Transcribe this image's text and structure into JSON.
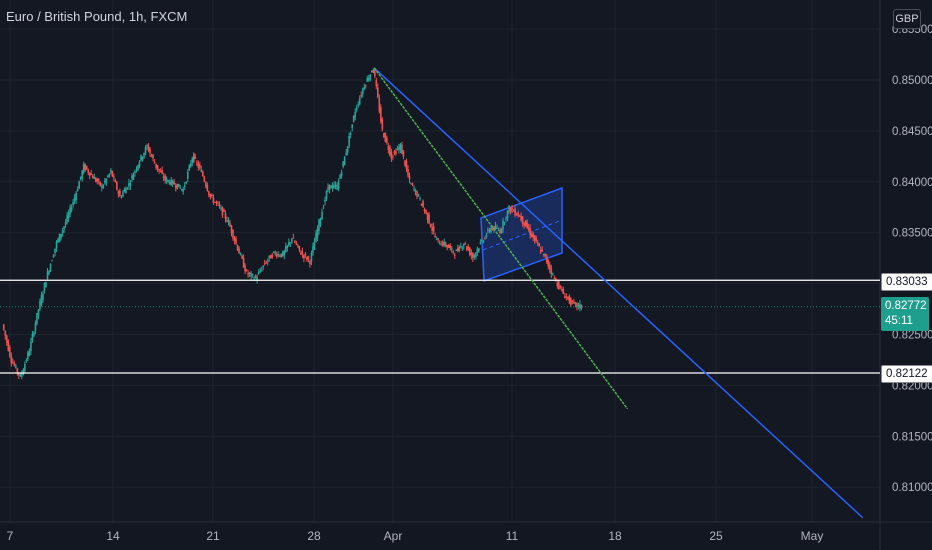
{
  "header": {
    "title": "Euro / British Pound, 1h, FXCM",
    "currency": "GBP"
  },
  "price_tags": {
    "level1": "0.83033",
    "level2": "0.82122",
    "current": "0.82772",
    "countdown": "45:11"
  },
  "colors": {
    "background": "#131722",
    "up": "#26a69a",
    "down": "#ef5350",
    "trend_blue": "#2962ff",
    "trend_green": "#4caf50",
    "level": "#ffffff"
  },
  "chart_data": {
    "type": "candlestick",
    "y_axis": {
      "ticks": [
        "0.85500",
        "0.85000",
        "0.84500",
        "0.84000",
        "0.83500",
        "0.83000",
        "0.82500",
        "0.82000",
        "0.81500",
        "0.81000"
      ],
      "ylim": [
        0.8067,
        0.856
      ]
    },
    "x_axis": {
      "ticks": [
        "7",
        "14",
        "21",
        "28",
        "Apr",
        "11",
        "18",
        "25",
        "May"
      ]
    },
    "approx_price_path": [
      [
        0,
        0.826
      ],
      [
        1,
        0.8225
      ],
      [
        2,
        0.8208
      ],
      [
        3,
        0.8235
      ],
      [
        4,
        0.8275
      ],
      [
        5,
        0.831
      ],
      [
        6,
        0.834
      ],
      [
        7,
        0.836
      ],
      [
        8,
        0.8385
      ],
      [
        9,
        0.8415
      ],
      [
        10,
        0.8405
      ],
      [
        11,
        0.8395
      ],
      [
        12,
        0.841
      ],
      [
        13,
        0.8385
      ],
      [
        14,
        0.8398
      ],
      [
        15,
        0.8418
      ],
      [
        16,
        0.8435
      ],
      [
        17,
        0.8415
      ],
      [
        18,
        0.8402
      ],
      [
        19,
        0.8398
      ],
      [
        20,
        0.8392
      ],
      [
        21,
        0.8425
      ],
      [
        22,
        0.841
      ],
      [
        23,
        0.8385
      ],
      [
        24,
        0.8375
      ],
      [
        25,
        0.836
      ],
      [
        26,
        0.8335
      ],
      [
        27,
        0.831
      ],
      [
        28,
        0.8305
      ],
      [
        29,
        0.832
      ],
      [
        30,
        0.833
      ],
      [
        31,
        0.8328
      ],
      [
        32,
        0.8345
      ],
      [
        33,
        0.833
      ],
      [
        34,
        0.8322
      ],
      [
        35,
        0.836
      ],
      [
        36,
        0.8395
      ],
      [
        37,
        0.8395
      ],
      [
        38,
        0.843
      ],
      [
        39,
        0.847
      ],
      [
        40,
        0.8495
      ],
      [
        41,
        0.8512
      ],
      [
        42,
        0.845
      ],
      [
        43,
        0.8425
      ],
      [
        44,
        0.8435
      ],
      [
        45,
        0.84
      ],
      [
        46,
        0.8385
      ],
      [
        47,
        0.8365
      ],
      [
        48,
        0.8342
      ],
      [
        49,
        0.8338
      ],
      [
        50,
        0.833
      ],
      [
        51,
        0.834
      ],
      [
        52,
        0.8326
      ],
      [
        53,
        0.8342
      ],
      [
        54,
        0.8355
      ],
      [
        55,
        0.8352
      ],
      [
        56,
        0.8374
      ],
      [
        57,
        0.8368
      ],
      [
        58,
        0.8355
      ],
      [
        59,
        0.834
      ],
      [
        60,
        0.8325
      ],
      [
        61,
        0.8305
      ],
      [
        62,
        0.829
      ],
      [
        63,
        0.828
      ],
      [
        64,
        0.8277
      ]
    ],
    "horizontal_levels": [
      0.83033,
      0.82122
    ],
    "trend_lines": [
      {
        "name": "blue",
        "from": [
          41,
          0.8512
        ],
        "to": [
          95,
          0.807
        ]
      },
      {
        "name": "green",
        "from": [
          41,
          0.8512
        ],
        "to": [
          69,
          0.8177
        ]
      }
    ],
    "channel": {
      "color": "#2962ff"
    },
    "grid": true
  }
}
